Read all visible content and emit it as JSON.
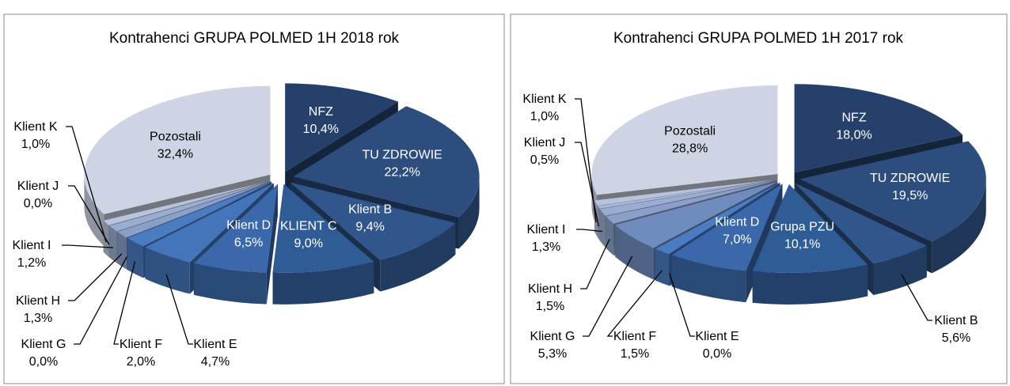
{
  "chart_data": [
    {
      "type": "pie",
      "title": "Kontrahenci GRUPA POLMED 1H 2018 rok",
      "categories": [
        "NFZ",
        "TU ZDROWIE",
        "Klient B",
        "KLIENT C",
        "Klient D",
        "Klient E",
        "Klient F",
        "Klient G",
        "Klient H",
        "Klient I",
        "Klient J",
        "Klient K",
        "Pozostali"
      ],
      "values": [
        10.4,
        22.2,
        9.4,
        9.0,
        6.5,
        4.7,
        2.0,
        0.0,
        1.3,
        1.2,
        0.0,
        1.0,
        32.4
      ],
      "value_labels": [
        "10,4%",
        "22,2%",
        "9,4%",
        "9,0%",
        "6,5%",
        "4,7%",
        "2,0%",
        "0,0%",
        "1,3%",
        "1,2%",
        "0,0%",
        "1,0%",
        "32,4%"
      ],
      "colors": [
        "#25416b",
        "#2c4d7e",
        "#30568b",
        "#305c96",
        "#3a68aa",
        "#4475bb",
        "#4a7cc2",
        "#6f8cbf",
        "#8aa0c8",
        "#9aadd0",
        "#a9b8d8",
        "#b8c4de",
        "#ced4e4"
      ]
    },
    {
      "type": "pie",
      "title": "Kontrahenci GRUPA POLMED 1H 2017 rok",
      "categories": [
        "NFZ",
        "TU ZDROWIE",
        "Klient B",
        "Grupa PZU",
        "Klient D",
        "Klient E",
        "Klient F",
        "Klient G",
        "Klient H",
        "Klient I",
        "Klient J",
        "Klient K",
        "Pozostali"
      ],
      "values": [
        18.0,
        19.5,
        5.6,
        10.1,
        7.0,
        0.0,
        1.5,
        5.3,
        1.5,
        1.3,
        0.5,
        1.0,
        28.8
      ],
      "value_labels": [
        "18,0%",
        "19,5%",
        "5,6%",
        "10,1%",
        "7,0%",
        "0,0%",
        "1,5%",
        "5,3%",
        "1,5%",
        "1,3%",
        "0,5%",
        "1,0%",
        "28,8%"
      ],
      "colors": [
        "#25416b",
        "#2c4d7e",
        "#30568b",
        "#305c96",
        "#3a68aa",
        "#4475bb",
        "#4a7cc2",
        "#6f8cbf",
        "#8aa0c8",
        "#9aadd0",
        "#a9b8d8",
        "#b8c4de",
        "#ced4e4"
      ]
    }
  ]
}
